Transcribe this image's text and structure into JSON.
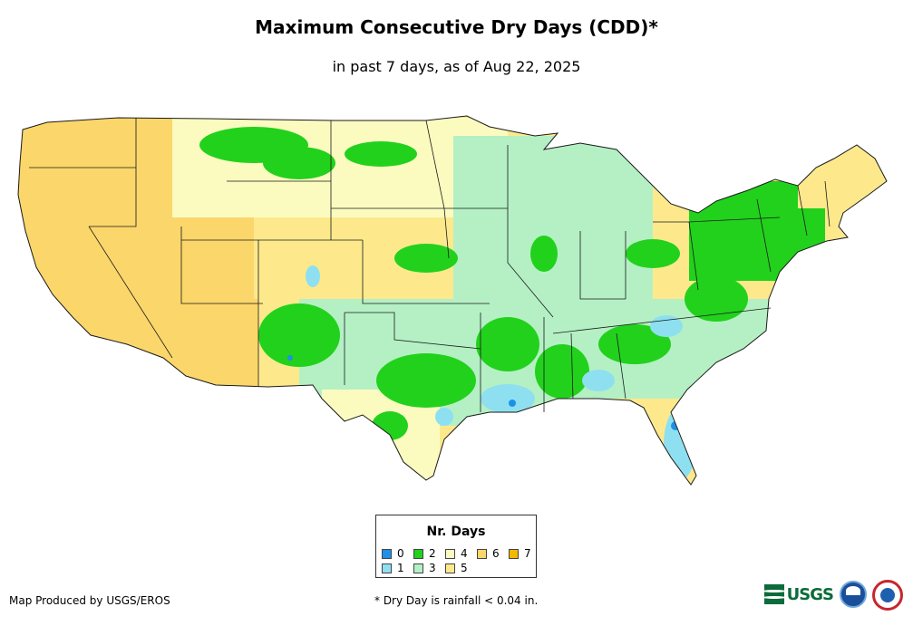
{
  "header": {
    "title": "Maximum Consecutive Dry Days (CDD)*",
    "subtitle": "in past 7 days, as of Aug 22, 2025"
  },
  "legend": {
    "title": "Nr. Days",
    "items": [
      {
        "label": "0",
        "color": "#1e90e8"
      },
      {
        "label": "1",
        "color": "#8ee0f0"
      },
      {
        "label": "2",
        "color": "#22d11c"
      },
      {
        "label": "3",
        "color": "#b4f0c4"
      },
      {
        "label": "4",
        "color": "#fbfbc0"
      },
      {
        "label": "5",
        "color": "#fde98c"
      },
      {
        "label": "6",
        "color": "#fbd66a"
      },
      {
        "label": "7",
        "color": "#f5b800"
      }
    ]
  },
  "footer": {
    "credit": "Map Produced by USGS/EROS",
    "note": "* Dry Day is rainfall < 0.04 in."
  },
  "logos": {
    "usgs": "USGS"
  },
  "map": {
    "region": "Contiguous United States",
    "colors": {
      "state_border": "#1a1a1a",
      "water": "#ffffff"
    }
  }
}
